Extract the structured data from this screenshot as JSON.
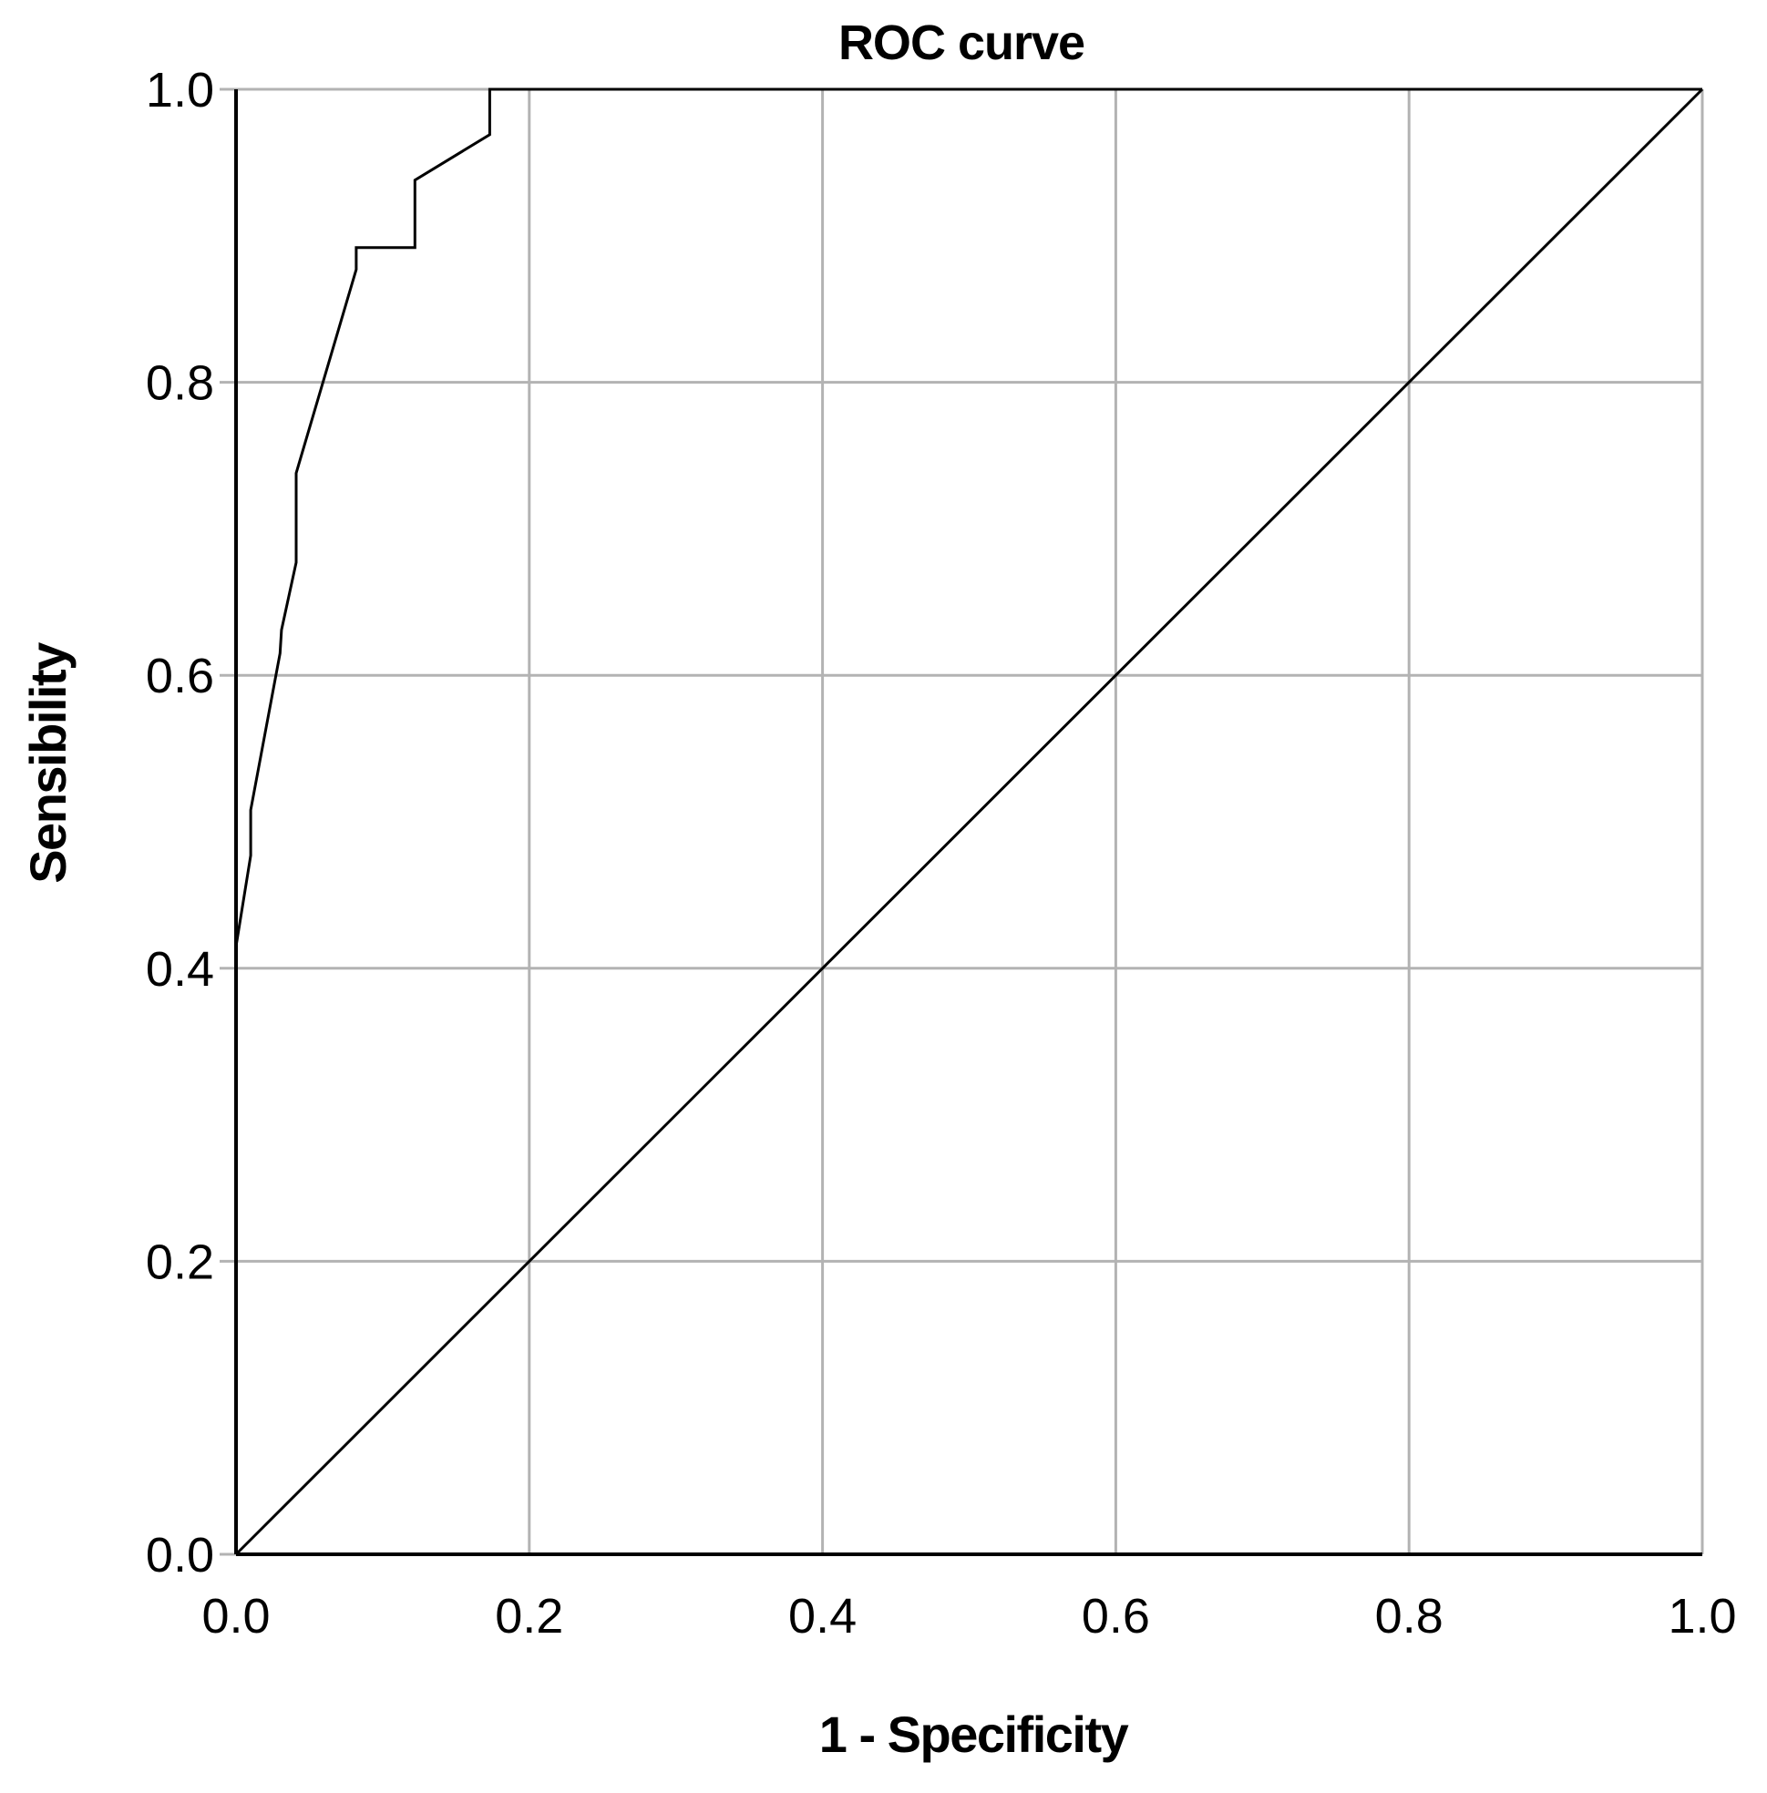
{
  "chart_data": {
    "type": "line",
    "title": "ROC curve",
    "xlabel": "1 - Specificity",
    "ylabel": "Sensibility",
    "xlim": [
      0,
      1
    ],
    "ylim": [
      0,
      1
    ],
    "x_ticks": [
      "0.0",
      "0.2",
      "0.4",
      "0.6",
      "0.8",
      "1.0"
    ],
    "y_ticks": [
      "0.0",
      "0.2",
      "0.4",
      "0.6",
      "0.8",
      "1.0"
    ],
    "x_tick_values": [
      0,
      0.2,
      0.4,
      0.6,
      0.8,
      1.0
    ],
    "y_tick_values": [
      0,
      0.2,
      0.4,
      0.6,
      0.8,
      1.0
    ],
    "grid": true,
    "series": [
      {
        "name": "ROC curve",
        "x": [
          0.0,
          0.0,
          0.01,
          0.01,
          0.03,
          0.031,
          0.041,
          0.041,
          0.082,
          0.082,
          0.122,
          0.122,
          0.173,
          0.173,
          1.0
        ],
        "y": [
          0.0,
          0.415,
          0.477,
          0.508,
          0.615,
          0.631,
          0.677,
          0.738,
          0.877,
          0.892,
          0.892,
          0.938,
          0.969,
          1.0,
          1.0
        ]
      },
      {
        "name": "Reference line",
        "x": [
          0,
          1
        ],
        "y": [
          0,
          1
        ]
      }
    ],
    "colors": {
      "curve": "#000000",
      "reference": "#000000",
      "grid": "#b3b3b3",
      "axis": "#000000",
      "text": "#000000"
    }
  }
}
